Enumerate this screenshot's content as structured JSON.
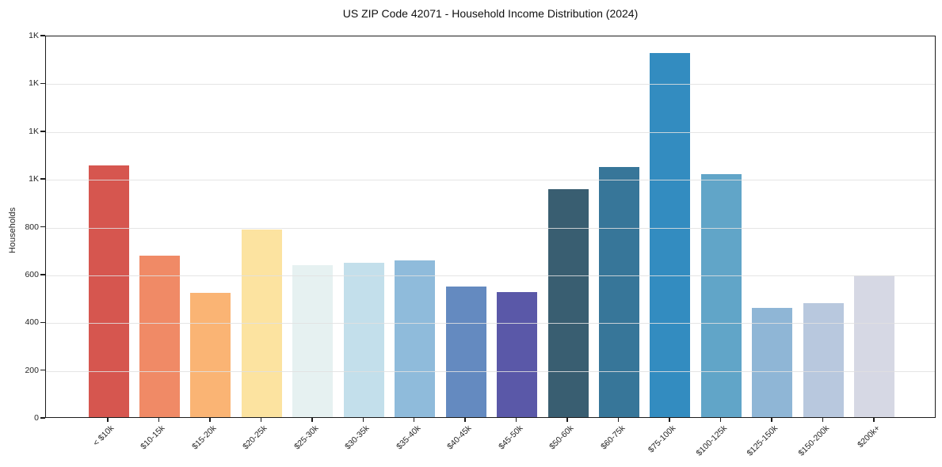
{
  "chart_data": {
    "type": "bar",
    "title": "US ZIP Code 42071 - Household Income Distribution (2024)",
    "xlabel": "",
    "ylabel": "Households",
    "categories": [
      "< $10k",
      "$10-15k",
      "$15-20k",
      "$20-25k",
      "$25-30k",
      "$30-35k",
      "$35-40k",
      "$40-45k",
      "$45-50k",
      "$50-60k",
      "$60-75k",
      "$75-100k",
      "$100-125k",
      "$125-150k",
      "$150-200k",
      "$200k+"
    ],
    "values": [
      1055,
      675,
      520,
      785,
      635,
      645,
      655,
      548,
      525,
      955,
      1048,
      1525,
      1018,
      458,
      478,
      594
    ],
    "bar_colors": [
      "#d6564f",
      "#f08a66",
      "#fab474",
      "#fce3a0",
      "#e6f1f1",
      "#c3dfeb",
      "#8fbbdb",
      "#648ac0",
      "#5a58a8",
      "#395e71",
      "#377699",
      "#338cc0",
      "#61a5c8",
      "#8fb6d6",
      "#b8c8de",
      "#d6d8e4"
    ],
    "ylim": [
      0,
      1600
    ],
    "ytick_values": [
      0,
      200,
      400,
      600,
      800,
      1000,
      1200,
      1400,
      1600
    ],
    "ytick_labels": [
      "0",
      "200",
      "400",
      "600",
      "800",
      "1K",
      "1K",
      "1K",
      "1K"
    ],
    "grid": "horizontal, light gray, drawn over bars",
    "legend": "none"
  },
  "colors": {
    "background": "#ffffff",
    "axis_frame": "#1c1c1c",
    "gridline": "#e3e3e3",
    "tick_text": "#262626",
    "title_text": "#111111"
  }
}
